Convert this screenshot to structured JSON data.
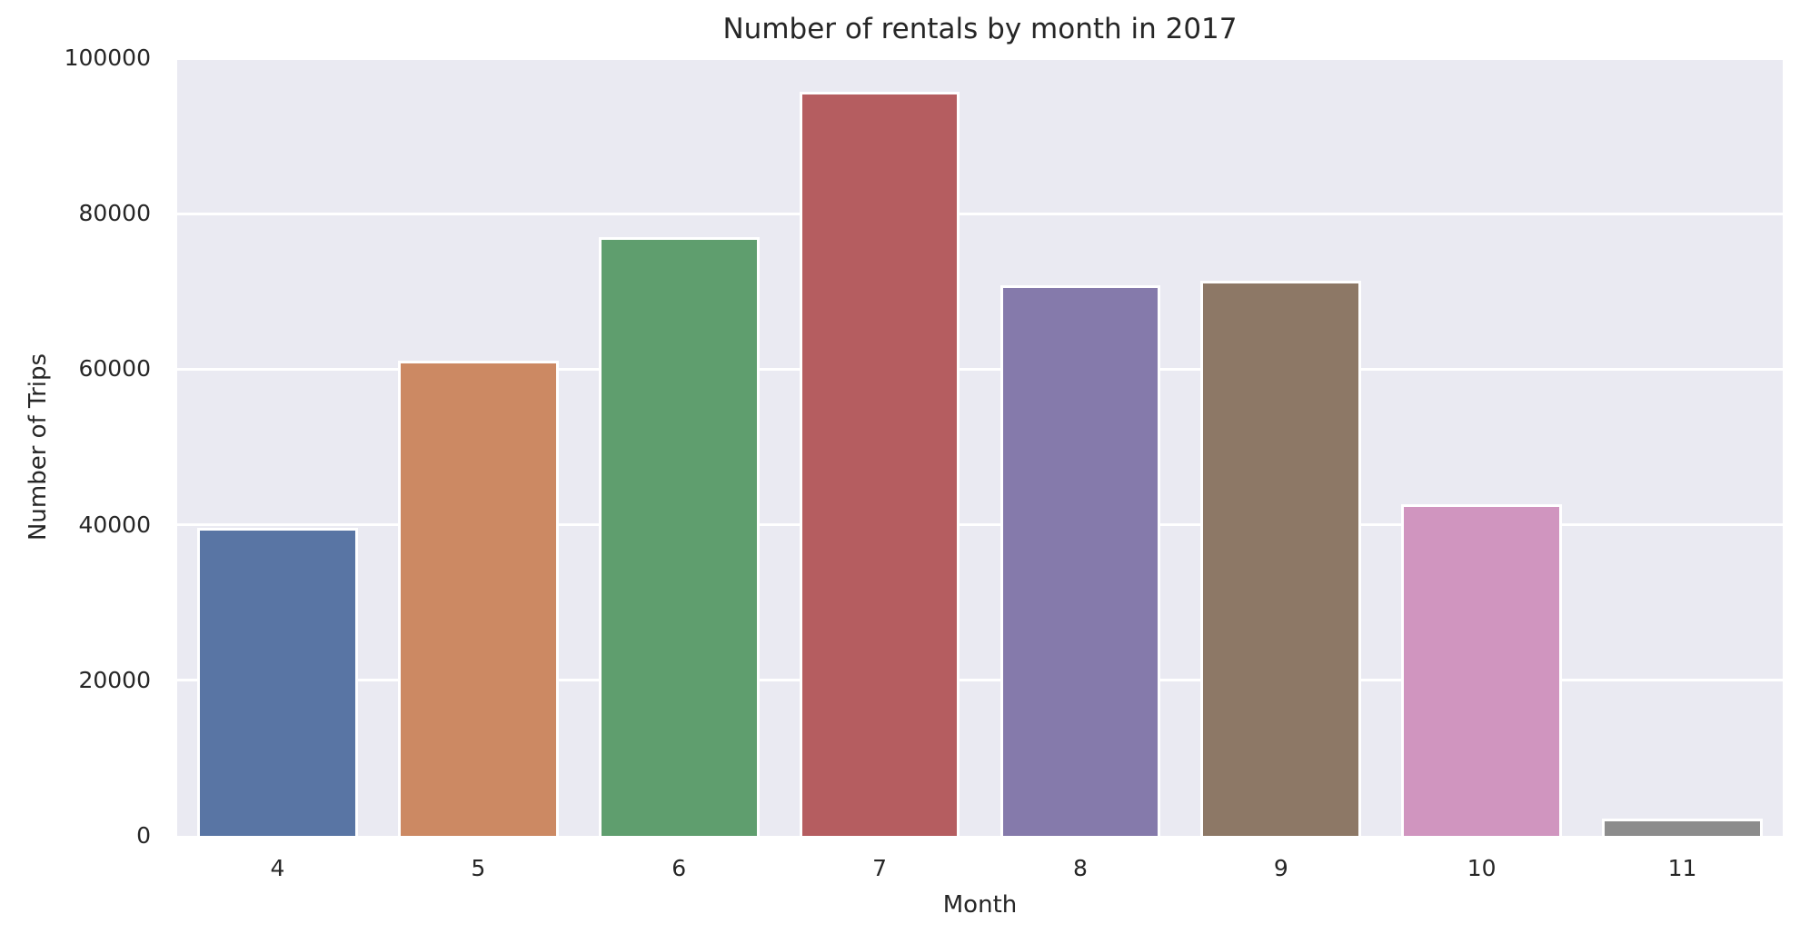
{
  "chart_data": {
    "type": "bar",
    "title": "Number of rentals by month in 2017",
    "xlabel": "Month",
    "ylabel": "Number of Trips",
    "categories": [
      "4",
      "5",
      "6",
      "7",
      "8",
      "9",
      "10",
      "11"
    ],
    "values": [
      39600,
      61100,
      77000,
      95700,
      70800,
      71400,
      42600,
      2200
    ],
    "bar_colors": [
      "#5975A4",
      "#CC8963",
      "#5F9E6E",
      "#B55D60",
      "#857AAB",
      "#8D7866",
      "#D095BF",
      "#8C8C8C"
    ],
    "ylim": [
      0,
      100000
    ],
    "yticks": [
      0,
      20000,
      40000,
      60000,
      80000,
      100000
    ],
    "grid": true,
    "legend": "none",
    "plot_bg_color": "#EAEAF2",
    "grid_color": "#FFFFFF",
    "text_color": "#262626",
    "bar_edge_color": "#FFFFFF"
  }
}
